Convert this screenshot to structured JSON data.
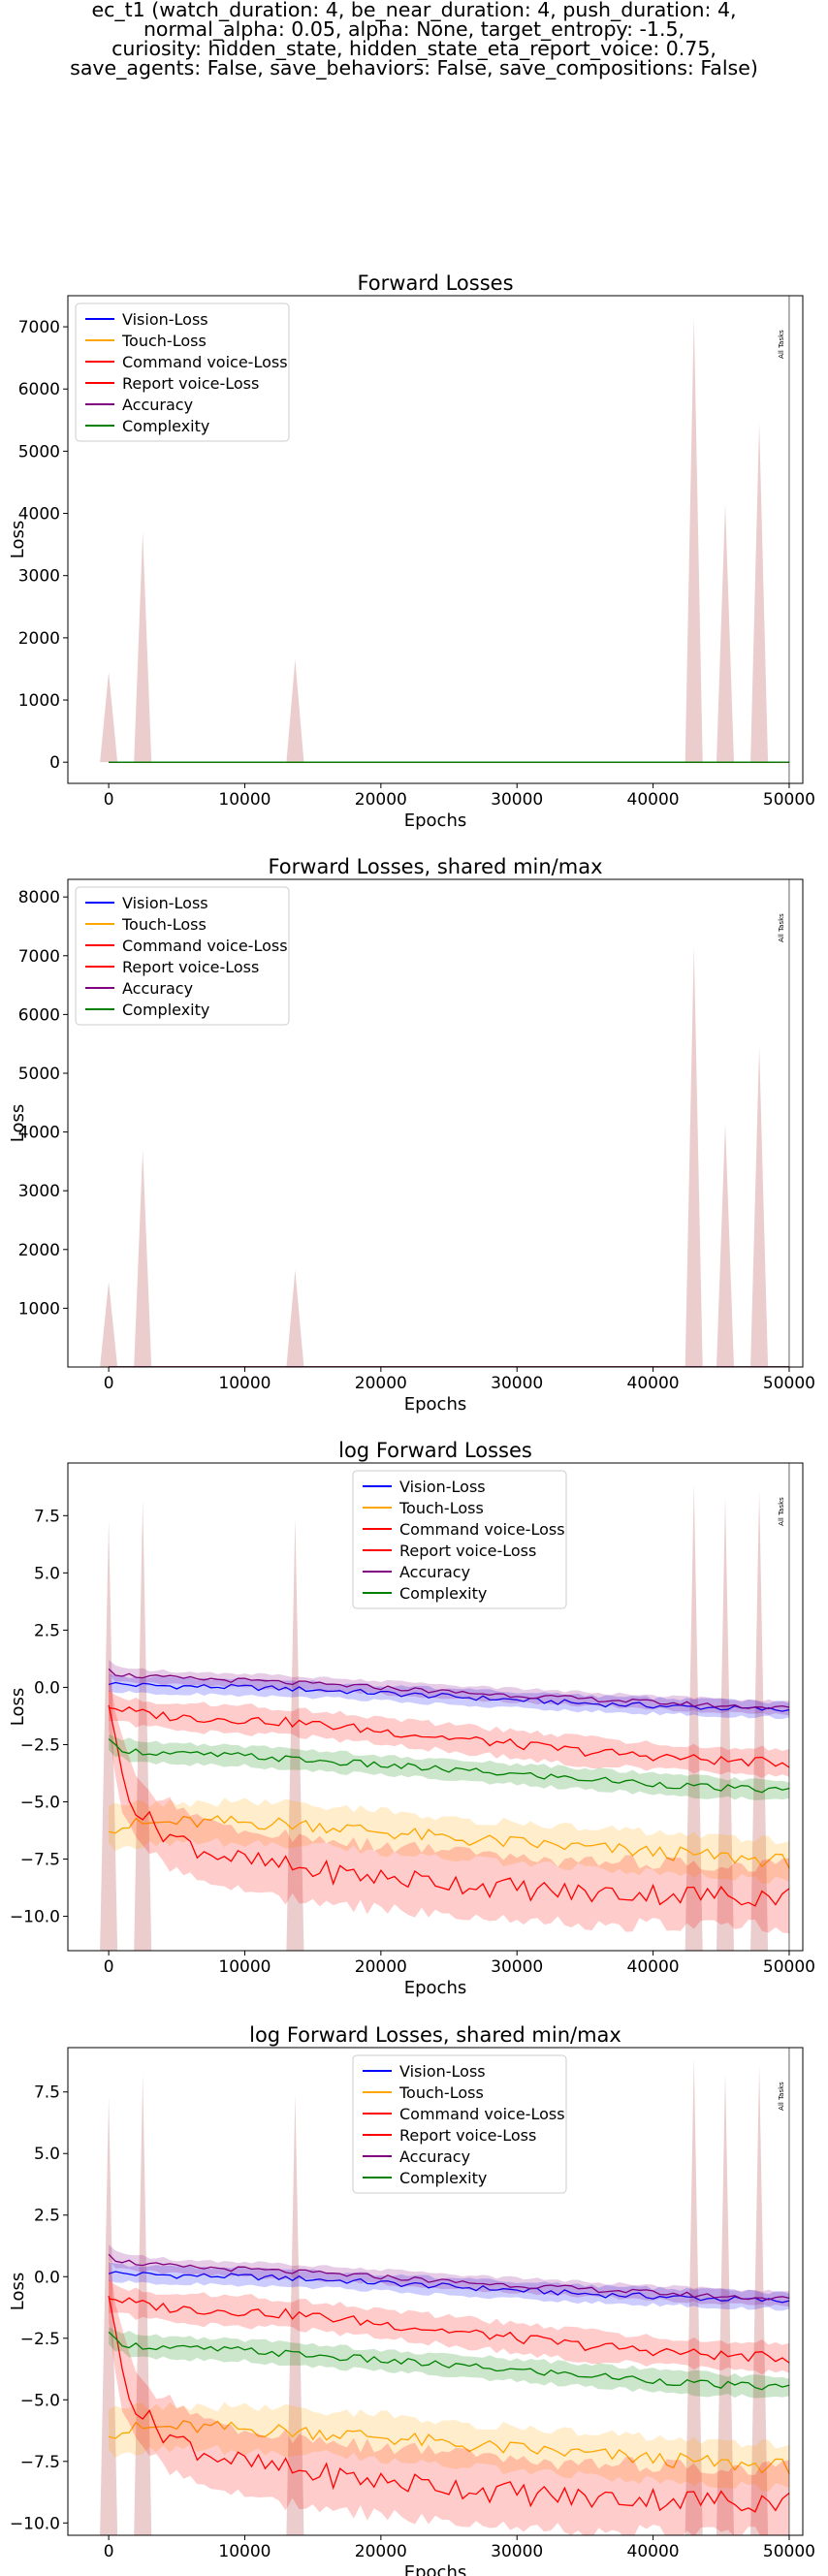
{
  "suptitle_lines": [
    "ec_t1 (watch_duration: 4, be_near_duration: 4, push_duration: 4,",
    "normal_alpha: 0.05, alpha: None, target_entropy: -1.5,",
    "curiosity: hidden_state, hidden_state_eta_report_voice: 0.75,",
    "save_agents: False, save_behaviors: False, save_compositions: False)"
  ],
  "colors": {
    "vision": "#0000ff",
    "touch": "#ffa500",
    "command": "#ff0000",
    "report": "#ff0000",
    "accuracy": "#800080",
    "complexity": "#008000",
    "spike_fill": "#e8c4c4"
  },
  "chart_data": [
    {
      "type": "line",
      "title": "Forward Losses",
      "xlabel": "Epochs",
      "ylabel": "Loss",
      "xlim": [
        -3000,
        51000
      ],
      "ylim": [
        -340,
        7500
      ],
      "xticks": [
        0,
        10000,
        20000,
        30000,
        40000,
        50000
      ],
      "yticks": [
        0,
        1000,
        2000,
        3000,
        4000,
        5000,
        6000,
        7000
      ],
      "legend_position": "upper-left",
      "vline": {
        "x": 50000,
        "label": "All Tasks"
      },
      "legend": [
        "Vision-Loss",
        "Touch-Loss",
        "Command voice-Loss",
        "Report voice-Loss",
        "Accuracy",
        "Complexity"
      ],
      "spikes": [
        [
          0,
          1450
        ],
        [
          2500,
          3700
        ],
        [
          13700,
          1650
        ],
        [
          43000,
          7150
        ],
        [
          45300,
          4150
        ],
        [
          47800,
          5450
        ]
      ],
      "series": [
        {
          "name": "Vision-Loss",
          "color": "vision",
          "x": [
            0,
            50000
          ],
          "y": [
            1,
            1
          ]
        },
        {
          "name": "Touch-Loss",
          "color": "touch",
          "x": [
            0,
            50000
          ],
          "y": [
            0,
            0
          ]
        },
        {
          "name": "Command voice-Loss",
          "color": "command",
          "x": [
            0,
            50000
          ],
          "y": [
            0.5,
            0.2
          ]
        },
        {
          "name": "Report voice-Loss",
          "color": "report",
          "x": [
            0,
            50000
          ],
          "y": [
            0.3,
            0.1
          ]
        },
        {
          "name": "Accuracy",
          "color": "accuracy",
          "x": [
            0,
            50000
          ],
          "y": [
            2,
            1
          ]
        },
        {
          "name": "Complexity",
          "color": "complexity",
          "x": [
            0,
            50000
          ],
          "y": [
            0.1,
            0
          ]
        }
      ]
    },
    {
      "type": "line",
      "title": "Forward Losses, shared min/max",
      "xlabel": "Epochs",
      "ylabel": "Loss",
      "xlim": [
        -3000,
        51000
      ],
      "ylim": [
        0,
        8300
      ],
      "xticks": [
        0,
        10000,
        20000,
        30000,
        40000,
        50000
      ],
      "yticks": [
        1000,
        2000,
        3000,
        4000,
        5000,
        6000,
        7000,
        8000
      ],
      "legend_position": "upper-left",
      "vline": {
        "x": 50000,
        "label": "All Tasks"
      },
      "legend": [
        "Vision-Loss",
        "Touch-Loss",
        "Command voice-Loss",
        "Report voice-Loss",
        "Accuracy",
        "Complexity"
      ],
      "spikes": [
        [
          0,
          1450
        ],
        [
          2500,
          3700
        ],
        [
          13700,
          1650
        ],
        [
          43000,
          7150
        ],
        [
          45300,
          4150
        ],
        [
          47800,
          5450
        ]
      ],
      "series": [
        {
          "name": "Vision-Loss",
          "color": "vision",
          "x": [
            0,
            50000
          ],
          "y": [
            1,
            1
          ]
        },
        {
          "name": "Touch-Loss",
          "color": "touch",
          "x": [
            0,
            50000
          ],
          "y": [
            0,
            0
          ]
        },
        {
          "name": "Command voice-Loss",
          "color": "command",
          "x": [
            0,
            50000
          ],
          "y": [
            0.5,
            0.2
          ]
        },
        {
          "name": "Report voice-Loss",
          "color": "report",
          "x": [
            0,
            50000
          ],
          "y": [
            0.3,
            0.1
          ]
        },
        {
          "name": "Accuracy",
          "color": "accuracy",
          "x": [
            0,
            50000
          ],
          "y": [
            2,
            1
          ]
        },
        {
          "name": "Complexity",
          "color": "complexity",
          "x": [
            0,
            50000
          ],
          "y": [
            0.1,
            0
          ]
        }
      ]
    },
    {
      "type": "line",
      "title": "log Forward Losses",
      "xlabel": "Epochs",
      "ylabel": "Loss",
      "xlim": [
        -3000,
        51000
      ],
      "ylim": [
        -11.5,
        9.8
      ],
      "xticks": [
        0,
        10000,
        20000,
        30000,
        40000,
        50000
      ],
      "yticks": [
        -10.0,
        -7.5,
        -5.0,
        -2.5,
        0.0,
        2.5,
        5.0,
        7.5
      ],
      "legend_position": "upper-center",
      "vline": {
        "x": 50000,
        "label": "All Tasks"
      },
      "legend": [
        "Vision-Loss",
        "Touch-Loss",
        "Command voice-Loss",
        "Report voice-Loss",
        "Accuracy",
        "Complexity"
      ],
      "spikes": [
        [
          0,
          7.3
        ],
        [
          2500,
          8.2
        ],
        [
          13700,
          7.4
        ],
        [
          43000,
          8.9
        ],
        [
          45300,
          8.3
        ],
        [
          47800,
          8.6
        ]
      ],
      "series": [
        {
          "name": "Vision-Loss",
          "color": "vision",
          "band": 0.35,
          "x": [
            0,
            500,
            2000,
            5000,
            10000,
            15000,
            20000,
            25000,
            30000,
            35000,
            40000,
            45000,
            50000
          ],
          "y": [
            0.2,
            0.15,
            0.1,
            0.05,
            0.0,
            -0.1,
            -0.25,
            -0.4,
            -0.55,
            -0.7,
            -0.8,
            -0.9,
            -1.0
          ]
        },
        {
          "name": "Touch-Loss",
          "color": "touch",
          "band": 0.9,
          "x": [
            0,
            500,
            2000,
            5000,
            10000,
            15000,
            20000,
            25000,
            30000,
            35000,
            40000,
            45000,
            50000
          ],
          "y": [
            -6.0,
            -6.1,
            -6.0,
            -5.9,
            -5.9,
            -6.0,
            -6.3,
            -6.6,
            -6.8,
            -7.0,
            -7.2,
            -7.4,
            -7.6
          ]
        },
        {
          "name": "Command voice-Loss",
          "color": "command",
          "band": 0.6,
          "x": [
            0,
            500,
            2000,
            5000,
            10000,
            15000,
            20000,
            25000,
            30000,
            35000,
            40000,
            45000,
            50000
          ],
          "y": [
            -0.8,
            -0.9,
            -1.1,
            -1.3,
            -1.4,
            -1.6,
            -1.9,
            -2.2,
            -2.5,
            -2.8,
            -3.0,
            -3.2,
            -3.3
          ]
        },
        {
          "name": "Report voice-Loss",
          "color": "report",
          "band": 1.4,
          "x": [
            0,
            500,
            1000,
            2000,
            3000,
            5000,
            7000,
            10000,
            15000,
            20000,
            25000,
            30000,
            35000,
            40000,
            45000,
            50000
          ],
          "y": [
            -0.5,
            -2.5,
            -3.8,
            -5.2,
            -5.9,
            -6.6,
            -7.1,
            -7.6,
            -8.0,
            -8.3,
            -8.5,
            -8.8,
            -9.0,
            -9.0,
            -9.1,
            -9.1
          ]
        },
        {
          "name": "Accuracy",
          "color": "accuracy",
          "band": 0.3,
          "x": [
            0,
            500,
            2000,
            5000,
            10000,
            15000,
            20000,
            25000,
            30000,
            35000,
            40000,
            45000,
            50000
          ],
          "y": [
            0.9,
            0.6,
            0.5,
            0.4,
            0.3,
            0.15,
            0.0,
            -0.2,
            -0.35,
            -0.5,
            -0.65,
            -0.8,
            -0.9
          ]
        },
        {
          "name": "Complexity",
          "color": "complexity",
          "band": 0.45,
          "x": [
            0,
            500,
            2000,
            5000,
            10000,
            15000,
            20000,
            25000,
            30000,
            35000,
            40000,
            45000,
            50000
          ],
          "y": [
            -2.4,
            -2.6,
            -2.8,
            -2.9,
            -3.0,
            -3.2,
            -3.4,
            -3.6,
            -3.8,
            -4.0,
            -4.2,
            -4.4,
            -4.5
          ]
        }
      ]
    },
    {
      "type": "line",
      "title": "log Forward Losses, shared min/max",
      "xlabel": "Epochs",
      "ylabel": "Loss",
      "xlim": [
        -3000,
        51000
      ],
      "ylim": [
        -10.5,
        9.3
      ],
      "xticks": [
        0,
        10000,
        20000,
        30000,
        40000,
        50000
      ],
      "yticks": [
        -10.0,
        -7.5,
        -5.0,
        -2.5,
        0.0,
        2.5,
        5.0,
        7.5
      ],
      "legend_position": "upper-center",
      "vline": {
        "x": 50000,
        "label": "All Tasks"
      },
      "legend": [
        "Vision-Loss",
        "Touch-Loss",
        "Command voice-Loss",
        "Report voice-Loss",
        "Accuracy",
        "Complexity"
      ],
      "spikes": [
        [
          0,
          7.3
        ],
        [
          2500,
          8.2
        ],
        [
          13700,
          7.4
        ],
        [
          43000,
          8.9
        ],
        [
          45300,
          8.3
        ],
        [
          47800,
          8.6
        ]
      ],
      "series": [
        {
          "name": "Vision-Loss",
          "color": "vision",
          "band": 0.35,
          "x": [
            0,
            500,
            2000,
            5000,
            10000,
            15000,
            20000,
            25000,
            30000,
            35000,
            40000,
            45000,
            50000
          ],
          "y": [
            0.2,
            0.15,
            0.1,
            0.05,
            0.0,
            -0.1,
            -0.25,
            -0.4,
            -0.55,
            -0.7,
            -0.8,
            -0.9,
            -1.0
          ]
        },
        {
          "name": "Touch-Loss",
          "color": "touch",
          "band": 0.9,
          "x": [
            0,
            500,
            2000,
            5000,
            10000,
            15000,
            20000,
            25000,
            30000,
            35000,
            40000,
            45000,
            50000
          ],
          "y": [
            -6.2,
            -6.3,
            -6.2,
            -6.1,
            -6.2,
            -6.3,
            -6.5,
            -6.8,
            -7.0,
            -7.2,
            -7.4,
            -7.6,
            -7.7
          ]
        },
        {
          "name": "Command voice-Loss",
          "color": "command",
          "band": 0.6,
          "x": [
            0,
            500,
            2000,
            5000,
            10000,
            15000,
            20000,
            25000,
            30000,
            35000,
            40000,
            45000,
            50000
          ],
          "y": [
            -0.8,
            -0.9,
            -1.1,
            -1.3,
            -1.4,
            -1.6,
            -1.9,
            -2.2,
            -2.5,
            -2.8,
            -3.0,
            -3.2,
            -3.3
          ]
        },
        {
          "name": "Report voice-Loss",
          "color": "report",
          "band": 1.4,
          "x": [
            0,
            500,
            1000,
            2000,
            3000,
            5000,
            7000,
            10000,
            15000,
            20000,
            25000,
            30000,
            35000,
            40000,
            45000,
            50000
          ],
          "y": [
            -0.5,
            -2.5,
            -3.8,
            -5.2,
            -5.9,
            -6.6,
            -7.1,
            -7.6,
            -8.0,
            -8.3,
            -8.5,
            -8.8,
            -9.0,
            -9.0,
            -9.1,
            -9.1
          ]
        },
        {
          "name": "Accuracy",
          "color": "accuracy",
          "band": 0.3,
          "x": [
            0,
            500,
            2000,
            5000,
            10000,
            15000,
            20000,
            25000,
            30000,
            35000,
            40000,
            45000,
            50000
          ],
          "y": [
            1.0,
            0.7,
            0.55,
            0.4,
            0.3,
            0.15,
            0.0,
            -0.2,
            -0.35,
            -0.5,
            -0.65,
            -0.8,
            -0.9
          ]
        },
        {
          "name": "Complexity",
          "color": "complexity",
          "band": 0.45,
          "x": [
            0,
            500,
            2000,
            5000,
            10000,
            15000,
            20000,
            25000,
            30000,
            35000,
            40000,
            45000,
            50000
          ],
          "y": [
            -2.4,
            -2.6,
            -2.8,
            -2.9,
            -3.0,
            -3.2,
            -3.4,
            -3.6,
            -3.8,
            -4.0,
            -4.2,
            -4.4,
            -4.5
          ]
        }
      ]
    }
  ]
}
